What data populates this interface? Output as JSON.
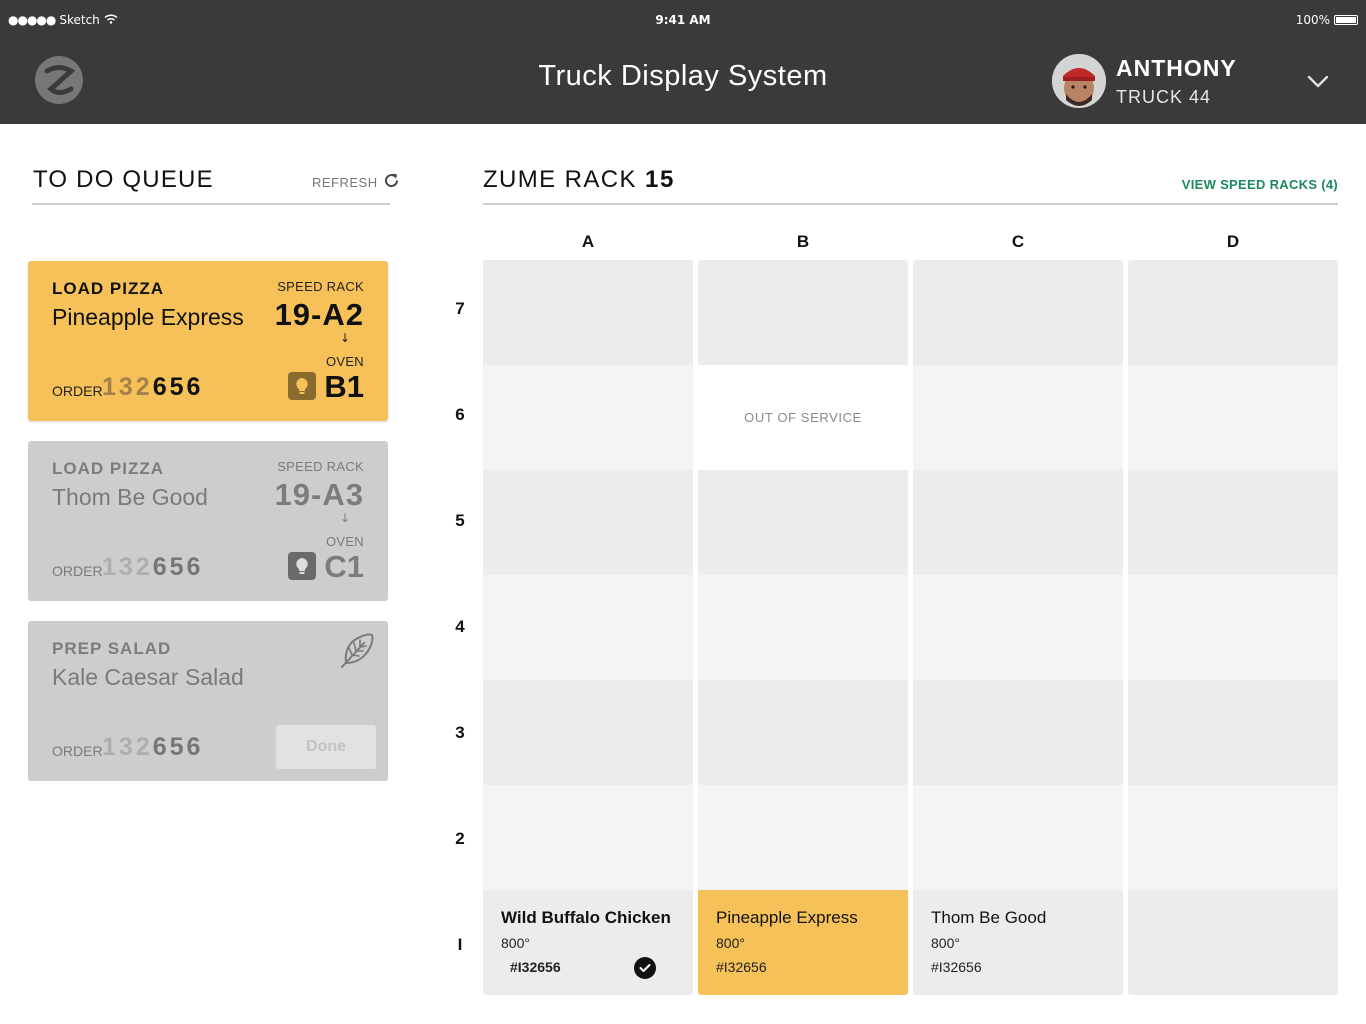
{
  "status_bar": {
    "carrier": "Sketch",
    "time": "9:41 AM",
    "battery": "100%"
  },
  "header": {
    "title": "Truck Display System",
    "user_name": "ANTHONY",
    "user_truck": "TRUCK 44"
  },
  "queue": {
    "title": "TO DO QUEUE",
    "refresh_label": "REFRESH",
    "cards": [
      {
        "task": "LOAD PIZZA",
        "name": "Pineapple Express",
        "speed_rack_label": "SPEED RACK",
        "speed_rack_value": "19-A2",
        "arrow": "↓",
        "oven_label": "OVEN",
        "oven_value": "B1",
        "order_label": "ORDER",
        "order_prefix": "132",
        "order_suffix": "656",
        "state": "active"
      },
      {
        "task": "LOAD PIZZA",
        "name": "Thom Be Good",
        "speed_rack_label": "SPEED RACK",
        "speed_rack_value": "19-A3",
        "arrow": "↓",
        "oven_label": "OVEN",
        "oven_value": "C1",
        "order_label": "ORDER",
        "order_prefix": "132",
        "order_suffix": "656",
        "state": "inactive"
      },
      {
        "task": "PREP SALAD",
        "name": "Kale Caesar Salad",
        "order_label": "ORDER",
        "order_prefix": "132",
        "order_suffix": "656",
        "done_label": "Done",
        "icon": "leaf-icon",
        "state": "inactive"
      }
    ]
  },
  "rack": {
    "title_prefix": "ZUME RACK",
    "title_number": "15",
    "view_speed_racks": "VIEW SPEED RACKS (4)",
    "columns": [
      "A",
      "B",
      "C",
      "D"
    ],
    "rows": [
      "7",
      "6",
      "5",
      "4",
      "3",
      "2",
      "I"
    ],
    "out_of_service": "OUT OF SERVICE",
    "slots": {
      "A1": {
        "name": "Wild Buffalo Chicken",
        "temp": "800°",
        "order": "#I32656",
        "done": true
      },
      "B1": {
        "name": "Pineapple Express",
        "temp": "800°",
        "order": "#I32656"
      },
      "C1": {
        "name": "Thom Be Good",
        "temp": "800°",
        "order": "#I32656"
      }
    }
  },
  "colors": {
    "header_bg": "#3a3a3a",
    "accent_yellow": "#f6c159",
    "accent_green": "#1c8a5c"
  }
}
